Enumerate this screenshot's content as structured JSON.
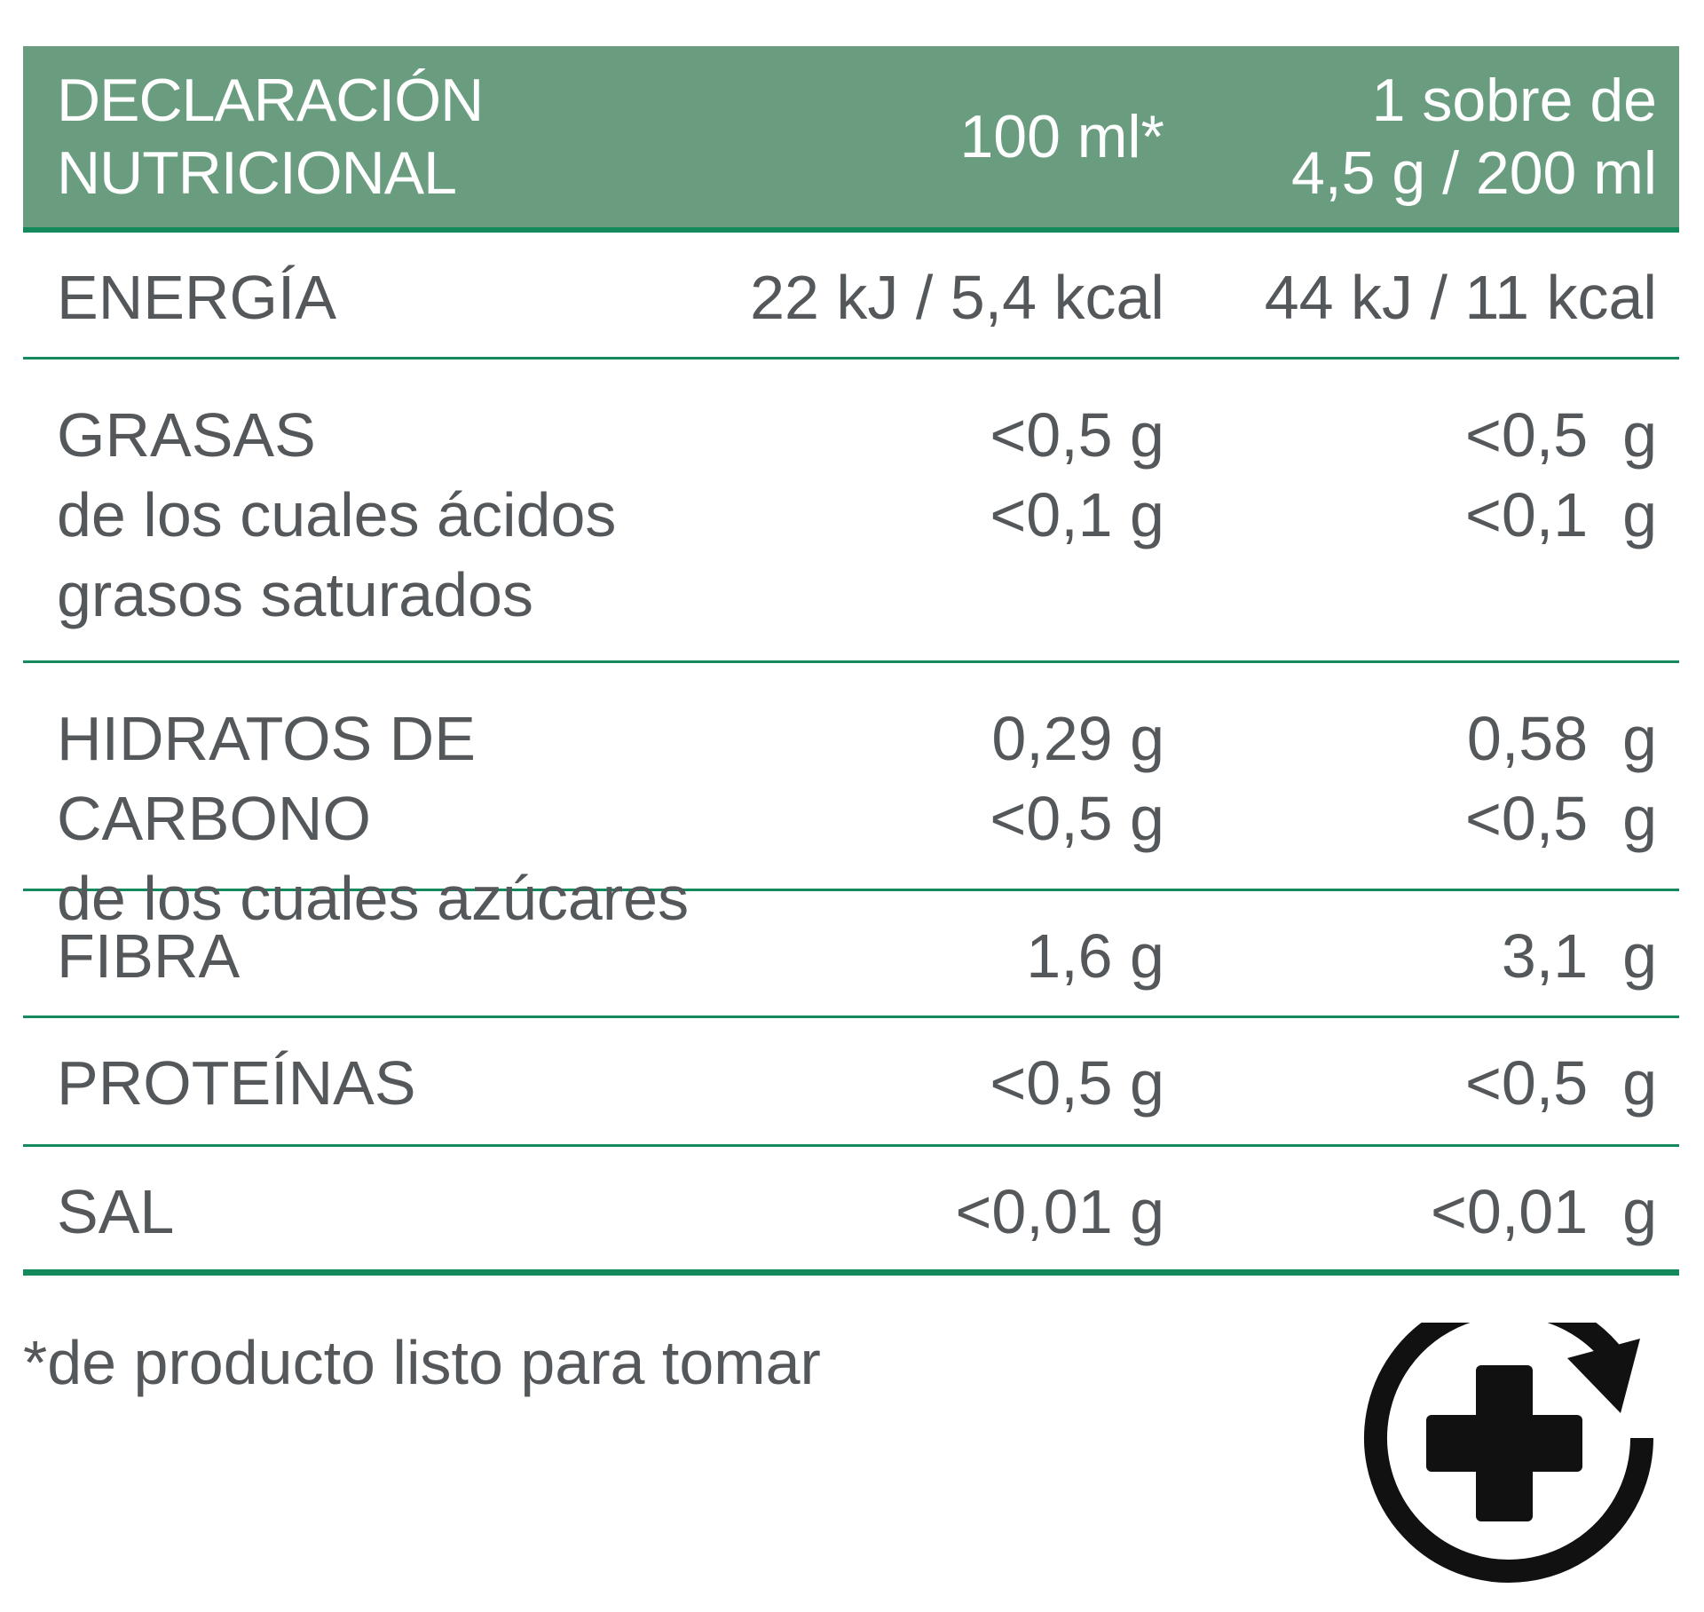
{
  "header": {
    "title_line1": "DECLARACIÓN",
    "title_line2": "NUTRICIONAL",
    "col_a": "100 ml*",
    "col_b_line1": "1 sobre de",
    "col_b_line2": "4,5 g / 200 ml"
  },
  "rows": [
    {
      "name": [
        "ENERGÍA"
      ],
      "a": [
        "22 kJ / 5,4 kcal"
      ],
      "b": [
        "44 kJ / 11 kcal"
      ]
    },
    {
      "name": [
        "GRASAS",
        "de los cuales ácidos",
        "grasos saturados"
      ],
      "a": [
        "<0,5 g",
        "<0,1 g"
      ],
      "b": [
        "<0,5  g",
        "<0,1  g"
      ]
    },
    {
      "name": [
        "HIDRATOS DE CARBONO",
        "de los cuales azúcares"
      ],
      "a": [
        "0,29 g",
        "<0,5 g"
      ],
      "b": [
        "0,58  g",
        "<0,5  g"
      ]
    },
    {
      "name": [
        "FIBRA"
      ],
      "a": [
        "1,6 g"
      ],
      "b": [
        "3,1  g"
      ]
    },
    {
      "name": [
        "PROTEÍNAS"
      ],
      "a": [
        "<0,5 g"
      ],
      "b": [
        "<0,5  g"
      ]
    },
    {
      "name": [
        "SAL"
      ],
      "a": [
        "<0,01 g"
      ],
      "b": [
        "<0,01  g"
      ]
    }
  ],
  "footnote": "*de producto listo para tomar",
  "logo_icon": "pharmacy-cross-refresh-icon",
  "colors": {
    "header_bg": "#6a9d80",
    "rule": "#148a5c",
    "text": "#55585b",
    "logo": "#111111"
  }
}
